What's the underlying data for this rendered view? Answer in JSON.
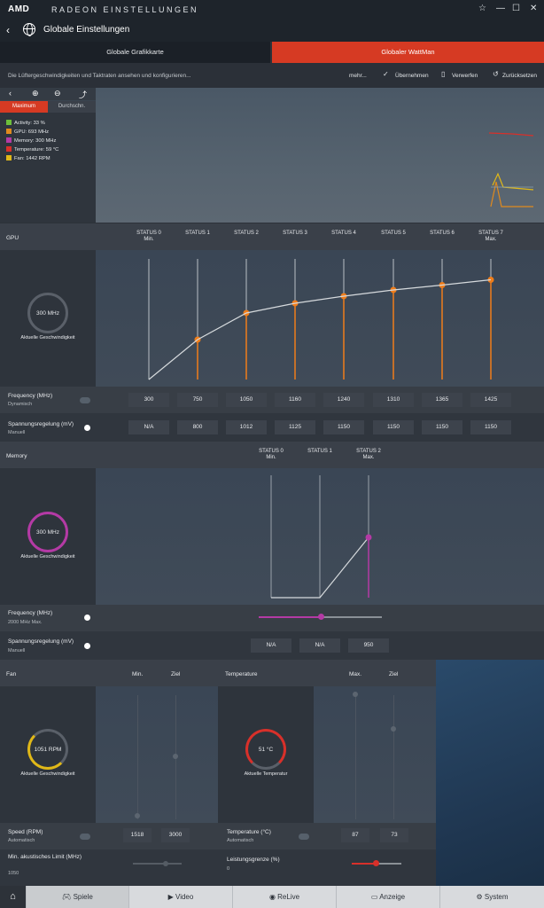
{
  "app": {
    "logo": "AMD",
    "title": "RADEON EINSTELLUNGEN",
    "back": "‹",
    "star": "☆",
    "min": "—",
    "max": "☐",
    "close": "✕"
  },
  "header": {
    "title": "Globale Einstellungen"
  },
  "tabs": [
    "Globale Grafikkarte",
    "Globaler WattMan"
  ],
  "toolbar": {
    "description": "Die Lüftergeschwindigkeiten und Taktraten ansehen und konfigurieren...",
    "more": "mehr...",
    "apply": "Übernehmen",
    "discard": "Verwerfen",
    "reset": "Zurücksetzen"
  },
  "monitor": {
    "tab_max": "Maximum",
    "tab_avg": "Durchschn.",
    "legend": [
      {
        "label": "Activity: 33 %",
        "color": "#6cbf3a"
      },
      {
        "label": "GPU: 693 MHz",
        "color": "#e08a1e"
      },
      {
        "label": "Memory: 300 MHz",
        "color": "#b43aa5"
      },
      {
        "label": "Temperature: 59 °C",
        "color": "#d8302a"
      },
      {
        "label": "Fan: 1442 RPM",
        "color": "#e0b818"
      }
    ]
  },
  "gpu": {
    "title": "GPU",
    "speed": "300 MHz",
    "speed_label": "Aktuelle Geschwindigkeit",
    "states": [
      {
        "l1": "STATUS 0",
        "l2": "Min."
      },
      {
        "l1": "STATUS 1",
        "l2": ""
      },
      {
        "l1": "STATUS 2",
        "l2": ""
      },
      {
        "l1": "STATUS 3",
        "l2": ""
      },
      {
        "l1": "STATUS 4",
        "l2": ""
      },
      {
        "l1": "STATUS 5",
        "l2": ""
      },
      {
        "l1": "STATUS 6",
        "l2": ""
      },
      {
        "l1": "STATUS 7",
        "l2": "Max."
      }
    ],
    "freq_label": "Frequency (MHz)",
    "freq_mode": "Dynamisch",
    "freq": [
      "300",
      "750",
      "1050",
      "1160",
      "1240",
      "1310",
      "1365",
      "1425"
    ],
    "volt_label": "Spannungsregelung (mV)",
    "volt_mode": "Manuell",
    "volt": [
      "N/A",
      "800",
      "1012",
      "1125",
      "1150",
      "1150",
      "1150",
      "1150"
    ]
  },
  "memory": {
    "title": "Memory",
    "speed": "300 MHz",
    "speed_label": "Aktuelle Geschwindigkeit",
    "states": [
      {
        "l1": "STATUS 0",
        "l2": "Min."
      },
      {
        "l1": "STATUS 1",
        "l2": ""
      },
      {
        "l1": "STATUS 2",
        "l2": "Max."
      }
    ],
    "freq_label": "Frequency (MHz)",
    "freq_sub": "2000 MHz Max.",
    "freq_level": 0.5,
    "volt_label": "Spannungsregelung (mV)",
    "volt_mode": "Manuell",
    "volt": [
      "N/A",
      "N/A",
      "950"
    ]
  },
  "fan": {
    "title": "Fan",
    "col_min": "Min.",
    "col_target": "Ziel",
    "speed": "1051 RPM",
    "speed_label": "Aktuelle Geschwindigkeit",
    "speed_rpm_label": "Speed (RPM)",
    "speed_mode": "Automatisch",
    "min": "1518",
    "target": "3000",
    "acoustic_label": "Min. akustisches Limit (MHz)",
    "acoustic_value": "1050"
  },
  "temperature": {
    "title": "Temperature",
    "col_max": "Max.",
    "col_target": "Ziel",
    "value": "51 °C",
    "value_label": "Aktuelle Temperatur",
    "temp_label": "Temperature (°C)",
    "temp_mode": "Automatisch",
    "max": "87",
    "target": "73",
    "power_label": "Leistungsgrenze (%)",
    "power_value": "0"
  },
  "nav": {
    "games": "Spiele",
    "video": "Video",
    "relive": "ReLive",
    "display": "Anzeige",
    "system": "System"
  }
}
